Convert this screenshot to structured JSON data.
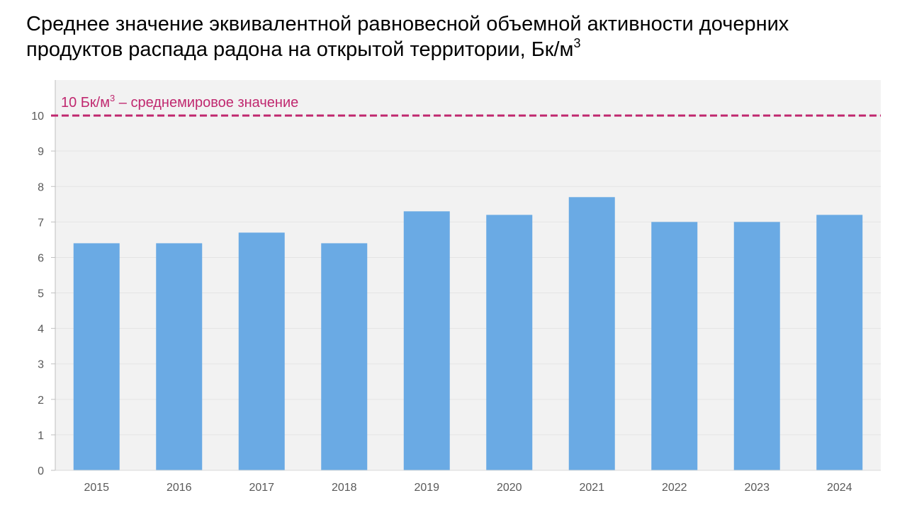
{
  "chart_data": {
    "type": "bar",
    "title": "Среднее значение эквивалентной равновесной объемной активности дочерних продуктов распада радона на открытой территории, Бк/м",
    "title_superscript": "3",
    "categories": [
      "2015",
      "2016",
      "2017",
      "2018",
      "2019",
      "2020",
      "2021",
      "2022",
      "2023",
      "2024"
    ],
    "values": [
      6.4,
      6.4,
      6.7,
      6.4,
      7.3,
      7.2,
      7.7,
      7.0,
      7.0,
      7.2
    ],
    "xlabel": "",
    "ylabel": "",
    "ylim": [
      0,
      11
    ],
    "yticks": [
      0,
      1,
      2,
      3,
      4,
      5,
      6,
      7,
      8,
      9,
      10
    ],
    "grid": true,
    "bar_color": "#6aaae4",
    "reference_line": {
      "value": 10,
      "label_prefix": "10 Бк/м",
      "label_sup": "3",
      "label_suffix": " – среднемировое значение",
      "color": "#c0286f"
    }
  }
}
